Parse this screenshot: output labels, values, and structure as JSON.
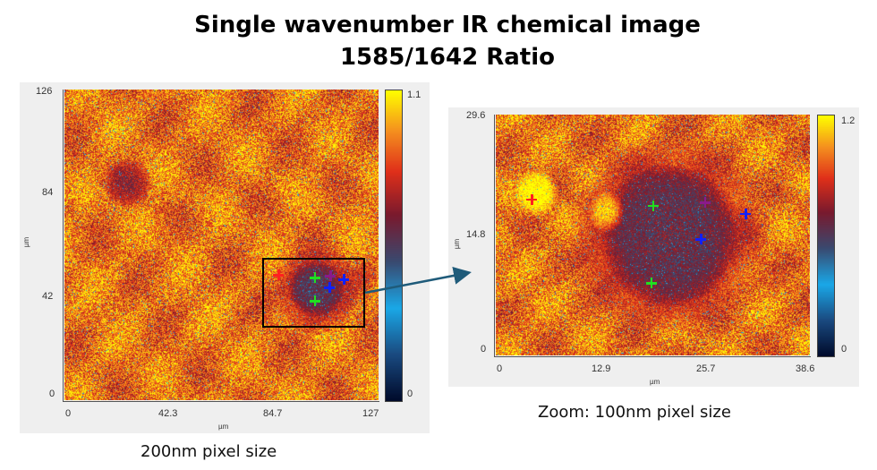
{
  "title_line1": "Single wavenumber IR chemical image",
  "title_line2": "1585/1642 Ratio",
  "colors": {
    "background": "#efefef",
    "arrow": "#1f5b7a"
  },
  "colormap": [
    "#000a2a",
    "#1a4a80",
    "#1aa8e8",
    "#3a4a70",
    "#7a1a2e",
    "#e0301a",
    "#f5901f",
    "#ffff00"
  ],
  "chart_data": [
    {
      "type": "heatmap",
      "caption": "200nm pixel size",
      "xlabel": "µm",
      "ylabel": "µm",
      "xlim": [
        0,
        127
      ],
      "ylim": [
        0,
        126
      ],
      "xticks": [
        "0",
        "42.3",
        "84.7",
        "127"
      ],
      "yticks": [
        "0",
        "42",
        "84",
        "126"
      ],
      "colorbar": {
        "min": "0",
        "max": "1.1"
      },
      "zoom_box": {
        "x": [
          80.3,
          121.6
        ],
        "y": [
          29,
          57
        ]
      },
      "markers": [
        {
          "color": "#ff2020",
          "x": 86.5,
          "y": 50.8
        },
        {
          "color": "#20e020",
          "x": 101.3,
          "y": 49.7
        },
        {
          "color": "#8a1a8a",
          "x": 107.5,
          "y": 50.4
        },
        {
          "color": "#1020ff",
          "x": 112.9,
          "y": 49.0
        },
        {
          "color": "#1020ff",
          "x": 107.1,
          "y": 45.7
        },
        {
          "color": "#20e020",
          "x": 101.3,
          "y": 40.3
        }
      ]
    },
    {
      "type": "heatmap",
      "caption": "Zoom: 100nm pixel size",
      "xlabel": "µm",
      "ylabel": "µm",
      "xlim": [
        0,
        38.6
      ],
      "ylim": [
        0,
        29.6
      ],
      "xticks": [
        "0",
        "12.9",
        "25.7",
        "38.6"
      ],
      "yticks": [
        "0",
        "14.8",
        "29.6"
      ],
      "colorbar": {
        "min": "0",
        "max": "1.2"
      },
      "markers": [
        {
          "color": "#ff2020",
          "x": 4.4,
          "y": 19.2
        },
        {
          "color": "#20e020",
          "x": 19.3,
          "y": 18.4
        },
        {
          "color": "#8a1a8a",
          "x": 25.7,
          "y": 18.8
        },
        {
          "color": "#1020ff",
          "x": 30.7,
          "y": 17.4
        },
        {
          "color": "#1020ff",
          "x": 25.2,
          "y": 14.3
        },
        {
          "color": "#20e020",
          "x": 19.1,
          "y": 8.9
        }
      ]
    }
  ]
}
